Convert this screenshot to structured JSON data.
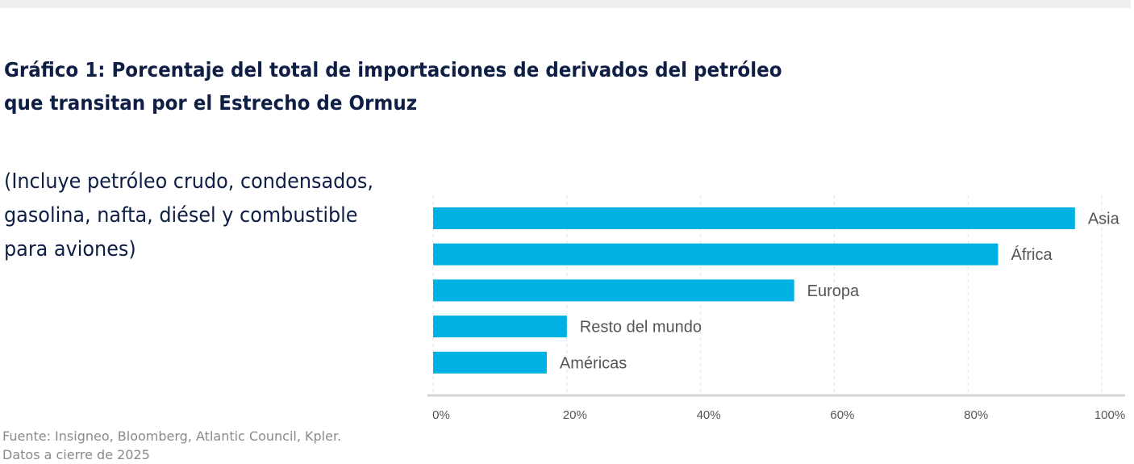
{
  "title_lines": [
    "Gráfico 1: Porcentaje del total de importaciones de derivados del petróleo",
    "que transitan por el Estrecho de Ormuz"
  ],
  "subtitle": "(Incluye petróleo crudo, condensados, gasolina, nafta, diésel y combustible para aviones)",
  "source_lines": [
    "Fuente: Insigneo, Bloomberg, Atlantic Council, Kpler.",
    "Datos a cierre de 2025"
  ],
  "chart_data": {
    "type": "bar",
    "orientation": "horizontal",
    "categories": [
      "Asia",
      "África",
      "Europa",
      "Resto del mundo",
      "Américas"
    ],
    "values": [
      96,
      84.5,
      54,
      20,
      17
    ],
    "xlim": [
      0,
      100
    ],
    "xticks": [
      "0%",
      "20%",
      "40%",
      "60%",
      "80%",
      "100%"
    ],
    "grid": true,
    "bar_color": "#00b2e3",
    "label_placement": "end-of-bar"
  }
}
